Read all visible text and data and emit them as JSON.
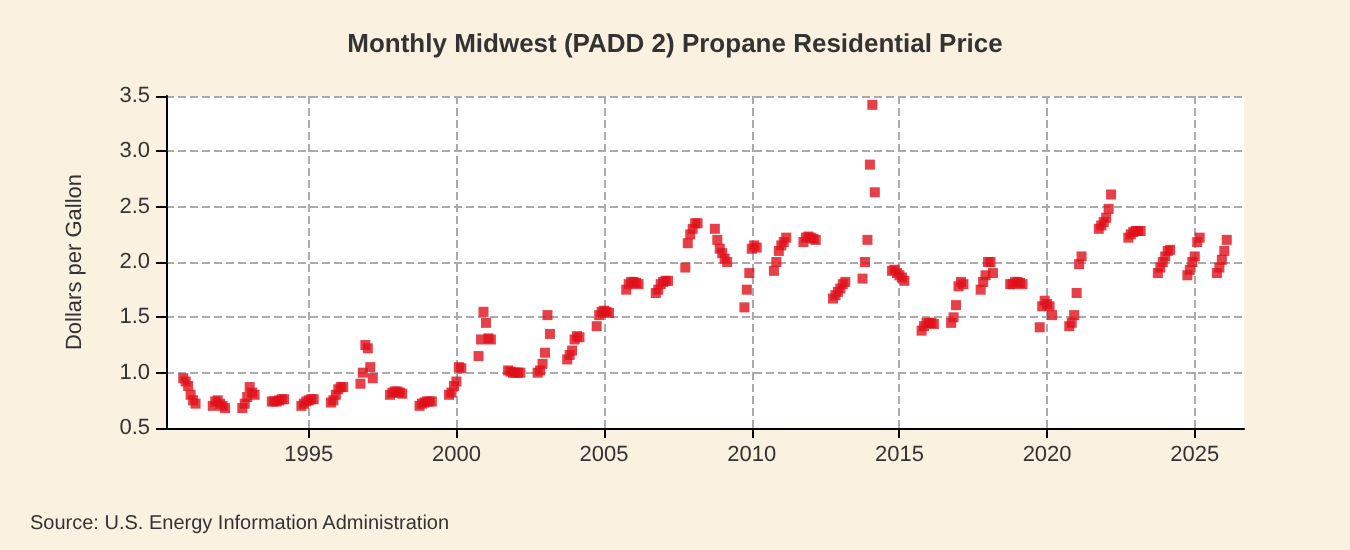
{
  "chart_data": {
    "type": "scatter",
    "title": "Monthly Midwest (PADD 2) Propane Residential Price",
    "ylabel": "Dollars per Gallon",
    "annotations": [
      "Source: U.S. Energy Information Administration"
    ],
    "marker": "square",
    "grid": true,
    "xlim": [
      "1990-03",
      "2026-09"
    ],
    "xticks": [
      "1995",
      "2000",
      "2005",
      "2010",
      "2015",
      "2020",
      "2025"
    ],
    "ylim": [
      0.5,
      3.5
    ],
    "yticks": [
      {
        "value": 0.5,
        "label": "0.5"
      },
      {
        "value": 1,
        "label": "1.0"
      },
      {
        "value": 1.5,
        "label": "1.5"
      },
      {
        "value": 2,
        "label": "2.0"
      },
      {
        "value": 2.5,
        "label": "2.5"
      },
      {
        "value": 3,
        "label": "3.0"
      },
      {
        "value": 3.5,
        "label": "3.5"
      }
    ],
    "series": [
      {
        "color": "#e0101a",
        "x": [
          "1990-10",
          "1990-11",
          "1990-12",
          "1991-01",
          "1991-02",
          "1991-03",
          "1991-10",
          "1991-11",
          "1991-12",
          "1992-01",
          "1992-02",
          "1992-03",
          "1992-10",
          "1992-11",
          "1992-12",
          "1993-01",
          "1993-02",
          "1993-03",
          "1993-10",
          "1993-11",
          "1993-12",
          "1994-01",
          "1994-02",
          "1994-03",
          "1994-10",
          "1994-11",
          "1994-12",
          "1995-01",
          "1995-02",
          "1995-03",
          "1995-10",
          "1995-11",
          "1995-12",
          "1996-01",
          "1996-02",
          "1996-03",
          "1996-10",
          "1996-11",
          "1996-12",
          "1997-01",
          "1997-02",
          "1997-03",
          "1997-10",
          "1997-11",
          "1997-12",
          "1998-01",
          "1998-02",
          "1998-03",
          "1998-10",
          "1998-11",
          "1998-12",
          "1999-01",
          "1999-02",
          "1999-03",
          "1999-10",
          "1999-11",
          "1999-12",
          "2000-01",
          "2000-02",
          "2000-03",
          "2000-10",
          "2000-11",
          "2000-12",
          "2001-01",
          "2001-02",
          "2001-03",
          "2001-10",
          "2001-11",
          "2001-12",
          "2002-01",
          "2002-02",
          "2002-03",
          "2002-10",
          "2002-11",
          "2002-12",
          "2003-01",
          "2003-02",
          "2003-03",
          "2003-10",
          "2003-11",
          "2003-12",
          "2004-01",
          "2004-02",
          "2004-03",
          "2004-10",
          "2004-11",
          "2004-12",
          "2005-01",
          "2005-02",
          "2005-03",
          "2005-10",
          "2005-11",
          "2005-12",
          "2006-01",
          "2006-02",
          "2006-03",
          "2006-10",
          "2006-11",
          "2006-12",
          "2007-01",
          "2007-02",
          "2007-03",
          "2007-10",
          "2007-11",
          "2007-12",
          "2008-01",
          "2008-02",
          "2008-03",
          "2008-10",
          "2008-11",
          "2008-12",
          "2009-01",
          "2009-02",
          "2009-03",
          "2009-10",
          "2009-11",
          "2009-12",
          "2010-01",
          "2010-02",
          "2010-03",
          "2010-10",
          "2010-11",
          "2010-12",
          "2011-01",
          "2011-02",
          "2011-03",
          "2011-10",
          "2011-11",
          "2011-12",
          "2012-01",
          "2012-02",
          "2012-03",
          "2012-10",
          "2012-11",
          "2012-12",
          "2013-01",
          "2013-02",
          "2013-03",
          "2013-10",
          "2013-11",
          "2013-12",
          "2014-01",
          "2014-02",
          "2014-03",
          "2014-10",
          "2014-11",
          "2014-12",
          "2015-01",
          "2015-02",
          "2015-03",
          "2015-10",
          "2015-11",
          "2015-12",
          "2016-01",
          "2016-02",
          "2016-03",
          "2016-10",
          "2016-11",
          "2016-12",
          "2017-01",
          "2017-02",
          "2017-03",
          "2017-10",
          "2017-11",
          "2017-12",
          "2018-01",
          "2018-02",
          "2018-03",
          "2018-10",
          "2018-11",
          "2018-12",
          "2019-01",
          "2019-02",
          "2019-03",
          "2019-10",
          "2019-11",
          "2019-12",
          "2020-01",
          "2020-02",
          "2020-03",
          "2020-10",
          "2020-11",
          "2020-12",
          "2021-01",
          "2021-02",
          "2021-03",
          "2021-10",
          "2021-11",
          "2021-12",
          "2022-01",
          "2022-02",
          "2022-03",
          "2022-10",
          "2022-11",
          "2022-12",
          "2023-01",
          "2023-02",
          "2023-03",
          "2023-10",
          "2023-11",
          "2023-12",
          "2024-01",
          "2024-02",
          "2024-03",
          "2024-10",
          "2024-11",
          "2024-12",
          "2025-01",
          "2025-02",
          "2025-03",
          "2025-10",
          "2025-11",
          "2025-12",
          "2026-01",
          "2026-02"
        ],
        "values": [
          0.95,
          0.92,
          0.88,
          0.8,
          0.75,
          0.72,
          0.7,
          0.74,
          0.75,
          0.72,
          0.7,
          0.68,
          0.68,
          0.72,
          0.78,
          0.87,
          0.82,
          0.8,
          0.74,
          0.74,
          0.74,
          0.75,
          0.76,
          0.76,
          0.7,
          0.72,
          0.74,
          0.75,
          0.76,
          0.76,
          0.73,
          0.75,
          0.8,
          0.85,
          0.87,
          0.87,
          0.9,
          1.0,
          1.25,
          1.22,
          1.05,
          0.95,
          0.8,
          0.82,
          0.83,
          0.83,
          0.82,
          0.81,
          0.7,
          0.72,
          0.73,
          0.74,
          0.74,
          0.74,
          0.8,
          0.82,
          0.88,
          0.92,
          1.05,
          1.04,
          1.15,
          1.3,
          1.55,
          1.45,
          1.31,
          1.3,
          1.02,
          1.01,
          1.0,
          1.0,
          1.0,
          1.0,
          1.0,
          1.02,
          1.08,
          1.18,
          1.52,
          1.35,
          1.12,
          1.16,
          1.2,
          1.3,
          1.33,
          1.32,
          1.42,
          1.52,
          1.55,
          1.56,
          1.55,
          1.54,
          1.75,
          1.8,
          1.82,
          1.82,
          1.81,
          1.8,
          1.72,
          1.75,
          1.8,
          1.82,
          1.83,
          1.83,
          1.95,
          2.17,
          2.25,
          2.3,
          2.35,
          2.35,
          2.3,
          2.2,
          2.12,
          2.08,
          2.03,
          2.0,
          1.59,
          1.75,
          1.9,
          2.12,
          2.15,
          2.13,
          1.92,
          2.0,
          2.1,
          2.15,
          2.18,
          2.22,
          2.18,
          2.22,
          2.23,
          2.22,
          2.21,
          2.2,
          1.67,
          1.7,
          1.73,
          1.76,
          1.8,
          1.82,
          1.85,
          2.0,
          2.2,
          2.88,
          3.42,
          2.63,
          1.92,
          1.93,
          1.9,
          1.88,
          1.86,
          1.83,
          1.38,
          1.42,
          1.45,
          1.45,
          1.45,
          1.44,
          1.45,
          1.5,
          1.61,
          1.78,
          1.82,
          1.8,
          1.75,
          1.82,
          1.88,
          2.0,
          2.0,
          1.9,
          1.8,
          1.8,
          1.82,
          1.82,
          1.81,
          1.8,
          1.41,
          1.6,
          1.65,
          1.62,
          1.6,
          1.52,
          1.42,
          1.45,
          1.52,
          1.72,
          1.98,
          2.05,
          2.3,
          2.33,
          2.36,
          2.4,
          2.48,
          2.61,
          2.22,
          2.25,
          2.27,
          2.28,
          2.28,
          2.28,
          1.9,
          1.95,
          2.0,
          2.05,
          2.1,
          2.11,
          1.88,
          1.93,
          2.0,
          2.05,
          2.18,
          2.22,
          1.9,
          1.95,
          2.02,
          2.1,
          2.2
        ]
      }
    ]
  }
}
